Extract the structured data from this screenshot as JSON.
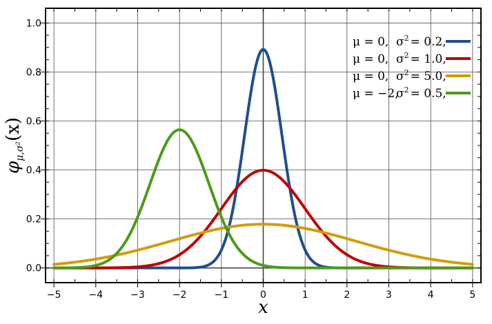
{
  "chart_data": {
    "type": "line",
    "title": "",
    "xlabel": "x",
    "ylabel": "φμ,σ²(x)",
    "ylabel_parts": {
      "base": "φ",
      "subscript": "μ,σ²",
      "arg": "(x)"
    },
    "xlim": [
      -5.2,
      5.2
    ],
    "ylim": [
      -0.06,
      1.06
    ],
    "x_ticks": [
      -5,
      -4,
      -3,
      -2,
      -1,
      0,
      1,
      2,
      3,
      4,
      5
    ],
    "x_tick_labels": [
      "−5",
      "−4",
      "−3",
      "−2",
      "−1",
      "0",
      "1",
      "2",
      "3",
      "4",
      "5"
    ],
    "y_ticks": [
      0.0,
      0.2,
      0.4,
      0.6,
      0.8,
      1.0
    ],
    "y_tick_labels": [
      "0.0",
      "0.2",
      "0.4",
      "0.6",
      "0.8",
      "1.0"
    ],
    "grid": true,
    "legend_position": "top-right",
    "series": [
      {
        "mu_label": "μ = 0,",
        "sigma_label": "σ",
        "sigma_sup": "2",
        "sigma_value": "= 0.2,",
        "color": "#1f4e8c",
        "mu": 0,
        "variance": 0.2
      },
      {
        "mu_label": "μ = 0,",
        "sigma_label": "σ",
        "sigma_sup": "2",
        "sigma_value": "= 1.0,",
        "color": "#c00000",
        "mu": 0,
        "variance": 1.0
      },
      {
        "mu_label": "μ = 0,",
        "sigma_label": "σ",
        "sigma_sup": "2",
        "sigma_value": "= 5.0,",
        "color": "#d39b0b",
        "mu": 0,
        "variance": 5.0
      },
      {
        "mu_label": "μ = −2,",
        "sigma_label": "σ",
        "sigma_sup": "2",
        "sigma_value": "= 0.5,",
        "color": "#4c9a1a",
        "mu": -2,
        "variance": 0.5
      }
    ]
  }
}
